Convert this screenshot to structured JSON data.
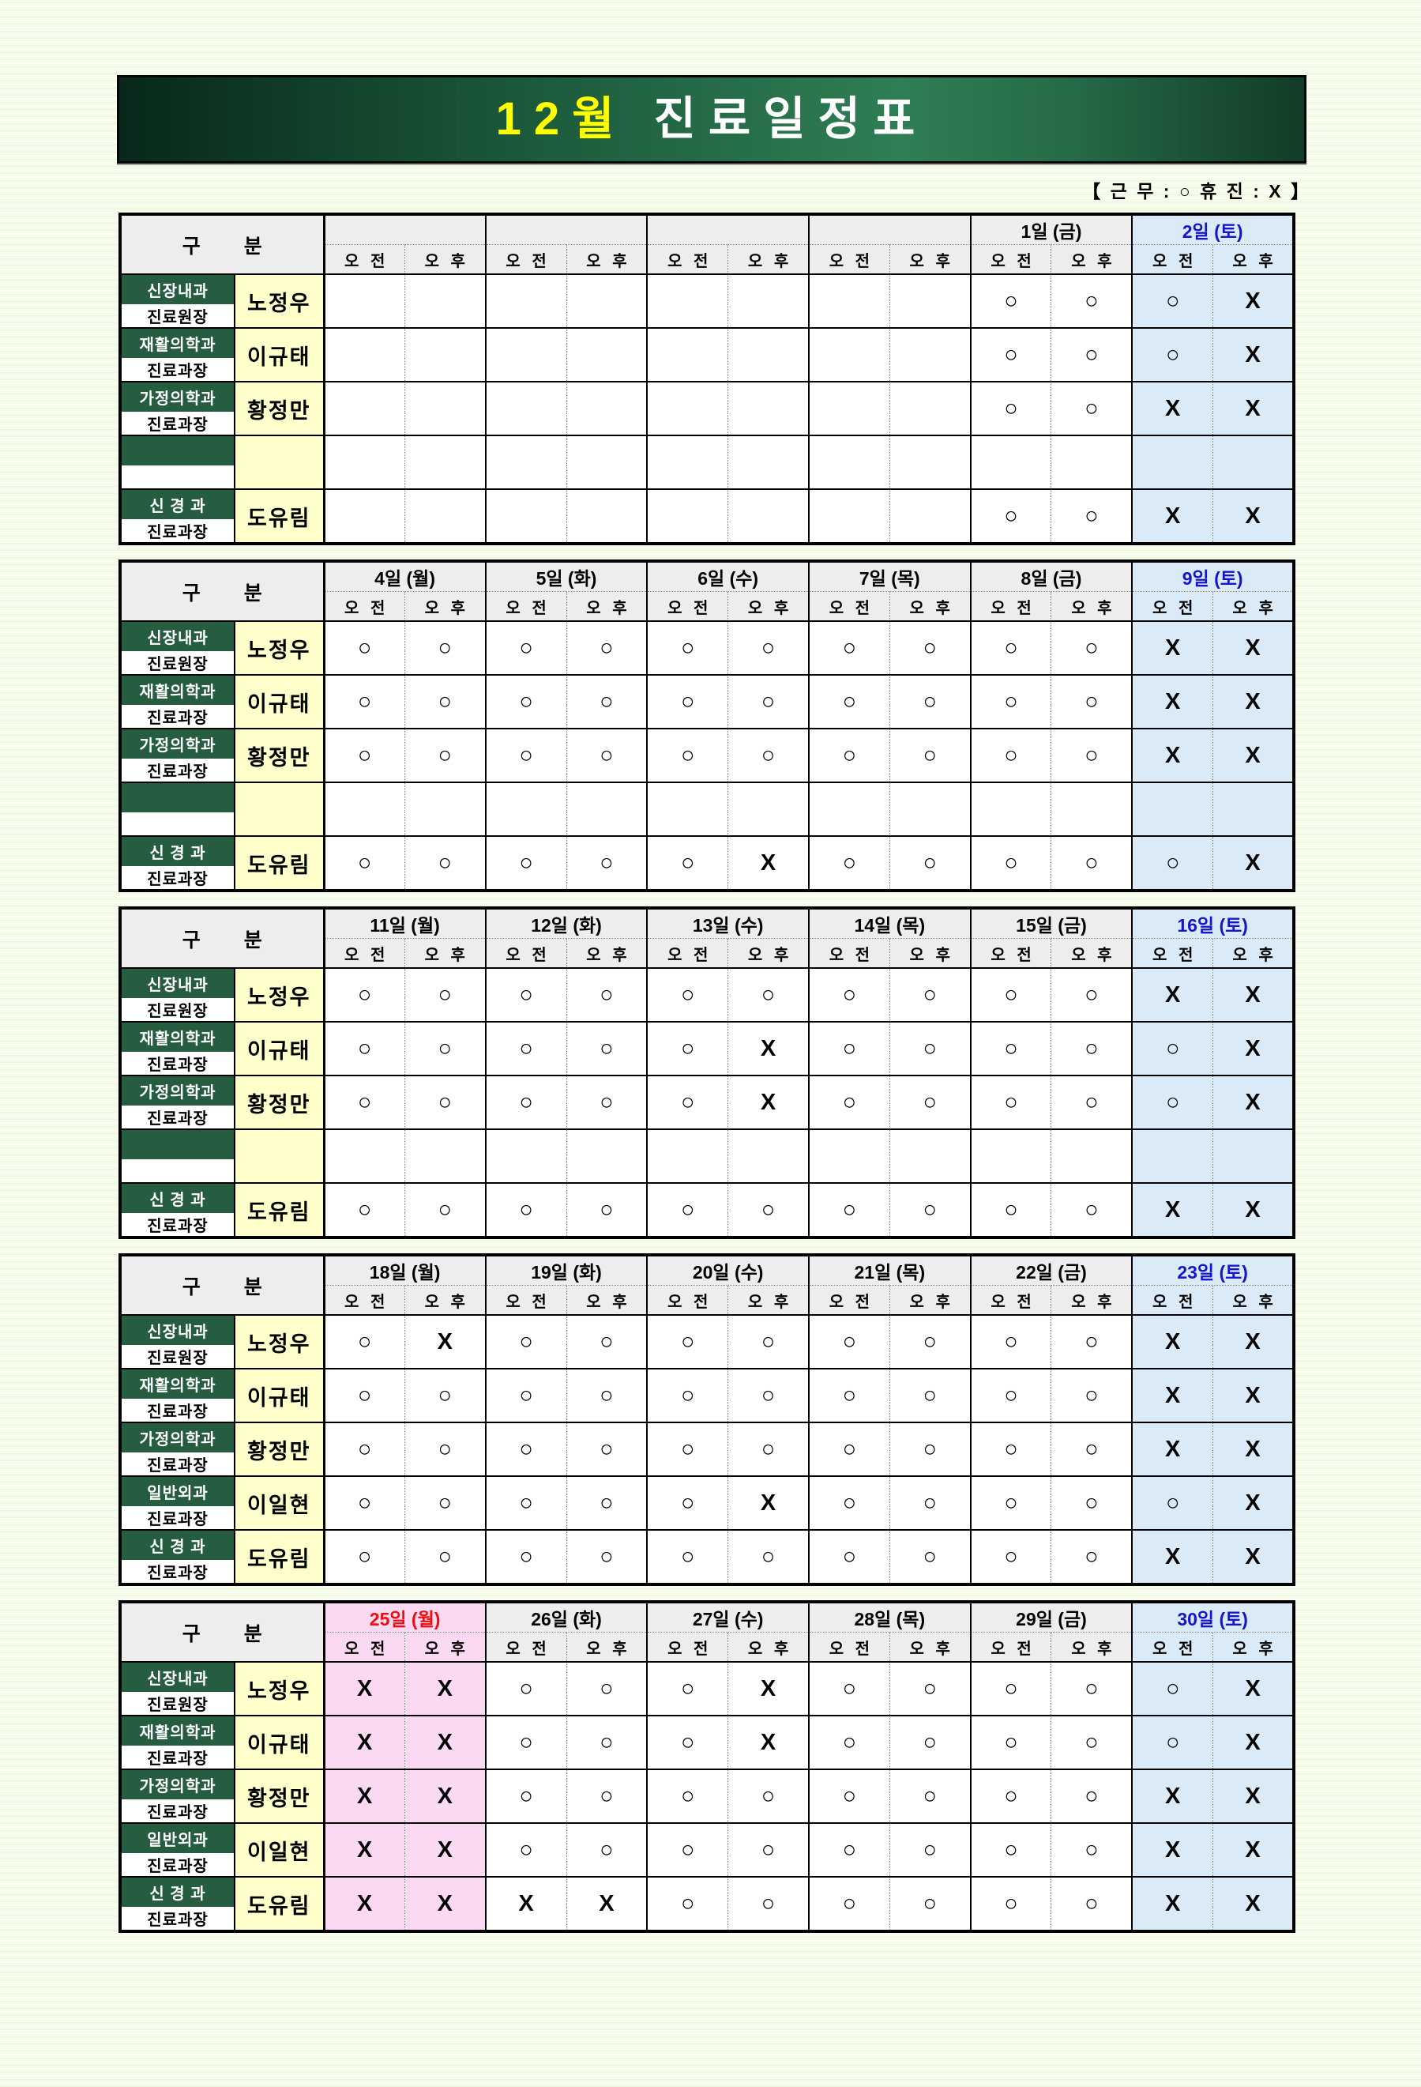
{
  "title": {
    "month": "12월",
    "rest": "진료일정표"
  },
  "legend": "【 근 무 : ○   휴 진 : X 】",
  "labels": {
    "gubun": "구 분",
    "am": "오 전",
    "pm": "오 후"
  },
  "colors": {
    "banner_dark": "#08281a",
    "banner_mid": "#1c5a3b",
    "banner_light": "#2f7e55",
    "banner_right": "#123c27",
    "dept_green": "#265c40",
    "name_yellow": "#ffffcc",
    "header_gray": "#ededed",
    "saturday_bg": "#daeaf6",
    "saturday_text": "#1515cf",
    "holiday_bg": "#fbd9f3",
    "holiday_text": "#f10d0d",
    "title_yellow": "#ffff00"
  },
  "weeks": [
    {
      "days": [
        {
          "label": "",
          "kind": "normal"
        },
        {
          "label": "",
          "kind": "normal"
        },
        {
          "label": "",
          "kind": "normal"
        },
        {
          "label": "",
          "kind": "normal"
        },
        {
          "label": "1일 (금)",
          "kind": "normal"
        },
        {
          "label": "2일 (토)",
          "kind": "saturday"
        }
      ],
      "rows": [
        {
          "dept": "신장내과",
          "role": "진료원장",
          "name": "노정우",
          "marks": [
            "",
            "",
            "",
            "",
            "",
            "",
            "",
            "",
            "○",
            "○",
            "○",
            "X"
          ]
        },
        {
          "dept": "재활의학과",
          "role": "진료과장",
          "name": "이규태",
          "marks": [
            "",
            "",
            "",
            "",
            "",
            "",
            "",
            "",
            "○",
            "○",
            "○",
            "X"
          ]
        },
        {
          "dept": "가정의학과",
          "role": "진료과장",
          "name": "황정만",
          "marks": [
            "",
            "",
            "",
            "",
            "",
            "",
            "",
            "",
            "○",
            "○",
            "X",
            "X"
          ]
        },
        {
          "dept": "",
          "role": "",
          "name": "",
          "marks": [
            "",
            "",
            "",
            "",
            "",
            "",
            "",
            "",
            "",
            "",
            "",
            ""
          ]
        },
        {
          "dept": "신 경 과",
          "role": "진료과장",
          "name": "도유림",
          "marks": [
            "",
            "",
            "",
            "",
            "",
            "",
            "",
            "",
            "○",
            "○",
            "X",
            "X"
          ]
        }
      ]
    },
    {
      "days": [
        {
          "label": "4일 (월)",
          "kind": "normal"
        },
        {
          "label": "5일 (화)",
          "kind": "normal"
        },
        {
          "label": "6일 (수)",
          "kind": "normal"
        },
        {
          "label": "7일 (목)",
          "kind": "normal"
        },
        {
          "label": "8일 (금)",
          "kind": "normal"
        },
        {
          "label": "9일 (토)",
          "kind": "saturday"
        }
      ],
      "rows": [
        {
          "dept": "신장내과",
          "role": "진료원장",
          "name": "노정우",
          "marks": [
            "○",
            "○",
            "○",
            "○",
            "○",
            "○",
            "○",
            "○",
            "○",
            "○",
            "X",
            "X"
          ]
        },
        {
          "dept": "재활의학과",
          "role": "진료과장",
          "name": "이규태",
          "marks": [
            "○",
            "○",
            "○",
            "○",
            "○",
            "○",
            "○",
            "○",
            "○",
            "○",
            "X",
            "X"
          ]
        },
        {
          "dept": "가정의학과",
          "role": "진료과장",
          "name": "황정만",
          "marks": [
            "○",
            "○",
            "○",
            "○",
            "○",
            "○",
            "○",
            "○",
            "○",
            "○",
            "X",
            "X"
          ]
        },
        {
          "dept": "",
          "role": "",
          "name": "",
          "marks": [
            "",
            "",
            "",
            "",
            "",
            "",
            "",
            "",
            "",
            "",
            "",
            ""
          ]
        },
        {
          "dept": "신 경 과",
          "role": "진료과장",
          "name": "도유림",
          "marks": [
            "○",
            "○",
            "○",
            "○",
            "○",
            "X",
            "○",
            "○",
            "○",
            "○",
            "○",
            "X"
          ]
        }
      ]
    },
    {
      "days": [
        {
          "label": "11일 (월)",
          "kind": "normal"
        },
        {
          "label": "12일 (화)",
          "kind": "normal"
        },
        {
          "label": "13일 (수)",
          "kind": "normal"
        },
        {
          "label": "14일 (목)",
          "kind": "normal"
        },
        {
          "label": "15일 (금)",
          "kind": "normal"
        },
        {
          "label": "16일 (토)",
          "kind": "saturday"
        }
      ],
      "rows": [
        {
          "dept": "신장내과",
          "role": "진료원장",
          "name": "노정우",
          "marks": [
            "○",
            "○",
            "○",
            "○",
            "○",
            "○",
            "○",
            "○",
            "○",
            "○",
            "X",
            "X"
          ]
        },
        {
          "dept": "재활의학과",
          "role": "진료과장",
          "name": "이규태",
          "marks": [
            "○",
            "○",
            "○",
            "○",
            "○",
            "X",
            "○",
            "○",
            "○",
            "○",
            "○",
            "X"
          ]
        },
        {
          "dept": "가정의학과",
          "role": "진료과장",
          "name": "황정만",
          "marks": [
            "○",
            "○",
            "○",
            "○",
            "○",
            "X",
            "○",
            "○",
            "○",
            "○",
            "○",
            "X"
          ]
        },
        {
          "dept": "",
          "role": "",
          "name": "",
          "marks": [
            "",
            "",
            "",
            "",
            "",
            "",
            "",
            "",
            "",
            "",
            "",
            ""
          ]
        },
        {
          "dept": "신 경 과",
          "role": "진료과장",
          "name": "도유림",
          "marks": [
            "○",
            "○",
            "○",
            "○",
            "○",
            "○",
            "○",
            "○",
            "○",
            "○",
            "X",
            "X"
          ]
        }
      ]
    },
    {
      "days": [
        {
          "label": "18일 (월)",
          "kind": "normal"
        },
        {
          "label": "19일 (화)",
          "kind": "normal"
        },
        {
          "label": "20일 (수)",
          "kind": "normal"
        },
        {
          "label": "21일 (목)",
          "kind": "normal"
        },
        {
          "label": "22일 (금)",
          "kind": "normal"
        },
        {
          "label": "23일 (토)",
          "kind": "saturday"
        }
      ],
      "rows": [
        {
          "dept": "신장내과",
          "role": "진료원장",
          "name": "노정우",
          "marks": [
            "○",
            "X",
            "○",
            "○",
            "○",
            "○",
            "○",
            "○",
            "○",
            "○",
            "X",
            "X"
          ]
        },
        {
          "dept": "재활의학과",
          "role": "진료과장",
          "name": "이규태",
          "marks": [
            "○",
            "○",
            "○",
            "○",
            "○",
            "○",
            "○",
            "○",
            "○",
            "○",
            "X",
            "X"
          ]
        },
        {
          "dept": "가정의학과",
          "role": "진료과장",
          "name": "황정만",
          "marks": [
            "○",
            "○",
            "○",
            "○",
            "○",
            "○",
            "○",
            "○",
            "○",
            "○",
            "X",
            "X"
          ]
        },
        {
          "dept": "일반외과",
          "role": "진료과장",
          "name": "이일현",
          "marks": [
            "○",
            "○",
            "○",
            "○",
            "○",
            "X",
            "○",
            "○",
            "○",
            "○",
            "○",
            "X"
          ]
        },
        {
          "dept": "신 경 과",
          "role": "진료과장",
          "name": "도유림",
          "marks": [
            "○",
            "○",
            "○",
            "○",
            "○",
            "○",
            "○",
            "○",
            "○",
            "○",
            "X",
            "X"
          ]
        }
      ]
    },
    {
      "days": [
        {
          "label": "25일 (월)",
          "kind": "holiday"
        },
        {
          "label": "26일 (화)",
          "kind": "normal"
        },
        {
          "label": "27일 (수)",
          "kind": "normal"
        },
        {
          "label": "28일 (목)",
          "kind": "normal"
        },
        {
          "label": "29일 (금)",
          "kind": "normal"
        },
        {
          "label": "30일 (토)",
          "kind": "saturday"
        }
      ],
      "rows": [
        {
          "dept": "신장내과",
          "role": "진료원장",
          "name": "노정우",
          "marks": [
            "X",
            "X",
            "○",
            "○",
            "○",
            "X",
            "○",
            "○",
            "○",
            "○",
            "○",
            "X"
          ]
        },
        {
          "dept": "재활의학과",
          "role": "진료과장",
          "name": "이규태",
          "marks": [
            "X",
            "X",
            "○",
            "○",
            "○",
            "X",
            "○",
            "○",
            "○",
            "○",
            "○",
            "X"
          ]
        },
        {
          "dept": "가정의학과",
          "role": "진료과장",
          "name": "황정만",
          "marks": [
            "X",
            "X",
            "○",
            "○",
            "○",
            "○",
            "○",
            "○",
            "○",
            "○",
            "X",
            "X"
          ]
        },
        {
          "dept": "일반외과",
          "role": "진료과장",
          "name": "이일현",
          "marks": [
            "X",
            "X",
            "○",
            "○",
            "○",
            "○",
            "○",
            "○",
            "○",
            "○",
            "X",
            "X"
          ]
        },
        {
          "dept": "신 경 과",
          "role": "진료과장",
          "name": "도유림",
          "marks": [
            "X",
            "X",
            "X",
            "X",
            "○",
            "○",
            "○",
            "○",
            "○",
            "○",
            "X",
            "X"
          ]
        }
      ]
    }
  ]
}
